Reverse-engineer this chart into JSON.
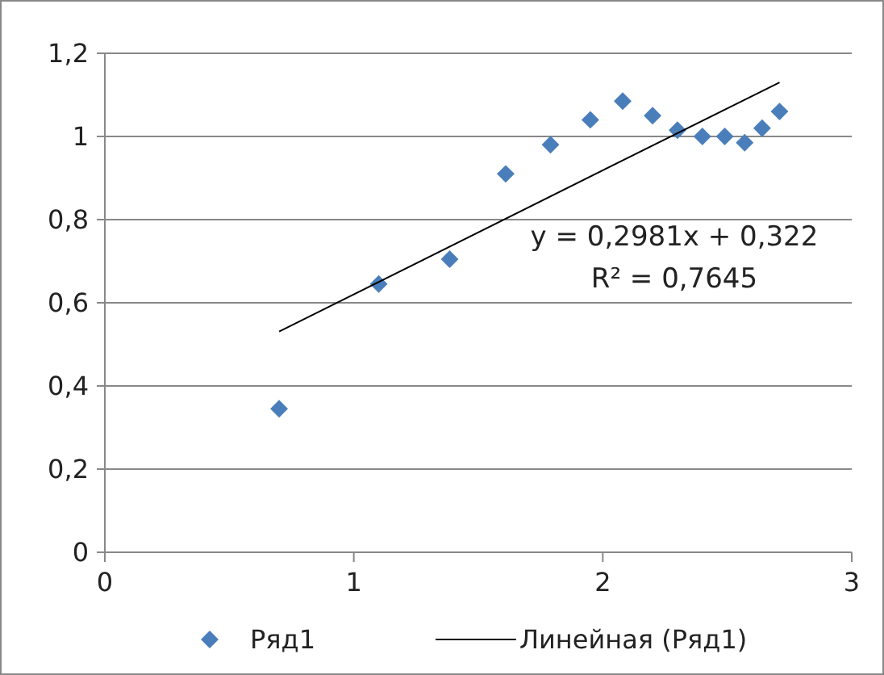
{
  "chart_data": {
    "type": "scatter",
    "xlim": [
      0,
      3
    ],
    "xticks": [
      0,
      1,
      2,
      3
    ],
    "ylim": [
      0,
      1.2
    ],
    "yticks": [
      0,
      {
        "value": 0.2,
        "label": "0,2"
      },
      {
        "value": 0.4,
        "label": "0,4"
      },
      {
        "value": 0.6,
        "label": "0,6"
      },
      {
        "value": 0.8,
        "label": "0,8"
      },
      1,
      {
        "value": 1.2,
        "label": "1,2"
      }
    ],
    "grid": "y",
    "legend": "bottom",
    "annotations": [
      "y = 0,2981x + 0,322",
      "R² = 0,7645"
    ],
    "series": [
      {
        "name": "Ряд1",
        "color": "#4a7ebb",
        "marker": "diamond",
        "x": [
          0.7,
          1.1,
          1.385,
          1.61,
          1.79,
          1.95,
          2.08,
          2.2,
          2.3,
          2.4,
          2.49,
          2.57,
          2.64,
          2.71
        ],
        "values": [
          0.345,
          0.645,
          0.705,
          0.91,
          0.98,
          1.04,
          1.085,
          1.05,
          1.015,
          1.0,
          1.0,
          0.985,
          1.02,
          1.06
        ]
      },
      {
        "name": "Линейная (Ряд1)",
        "type": "line",
        "marker": "none",
        "color": "#000000",
        "x": [
          0.7,
          2.71
        ],
        "values": [
          0.531,
          1.13
        ]
      }
    ]
  }
}
